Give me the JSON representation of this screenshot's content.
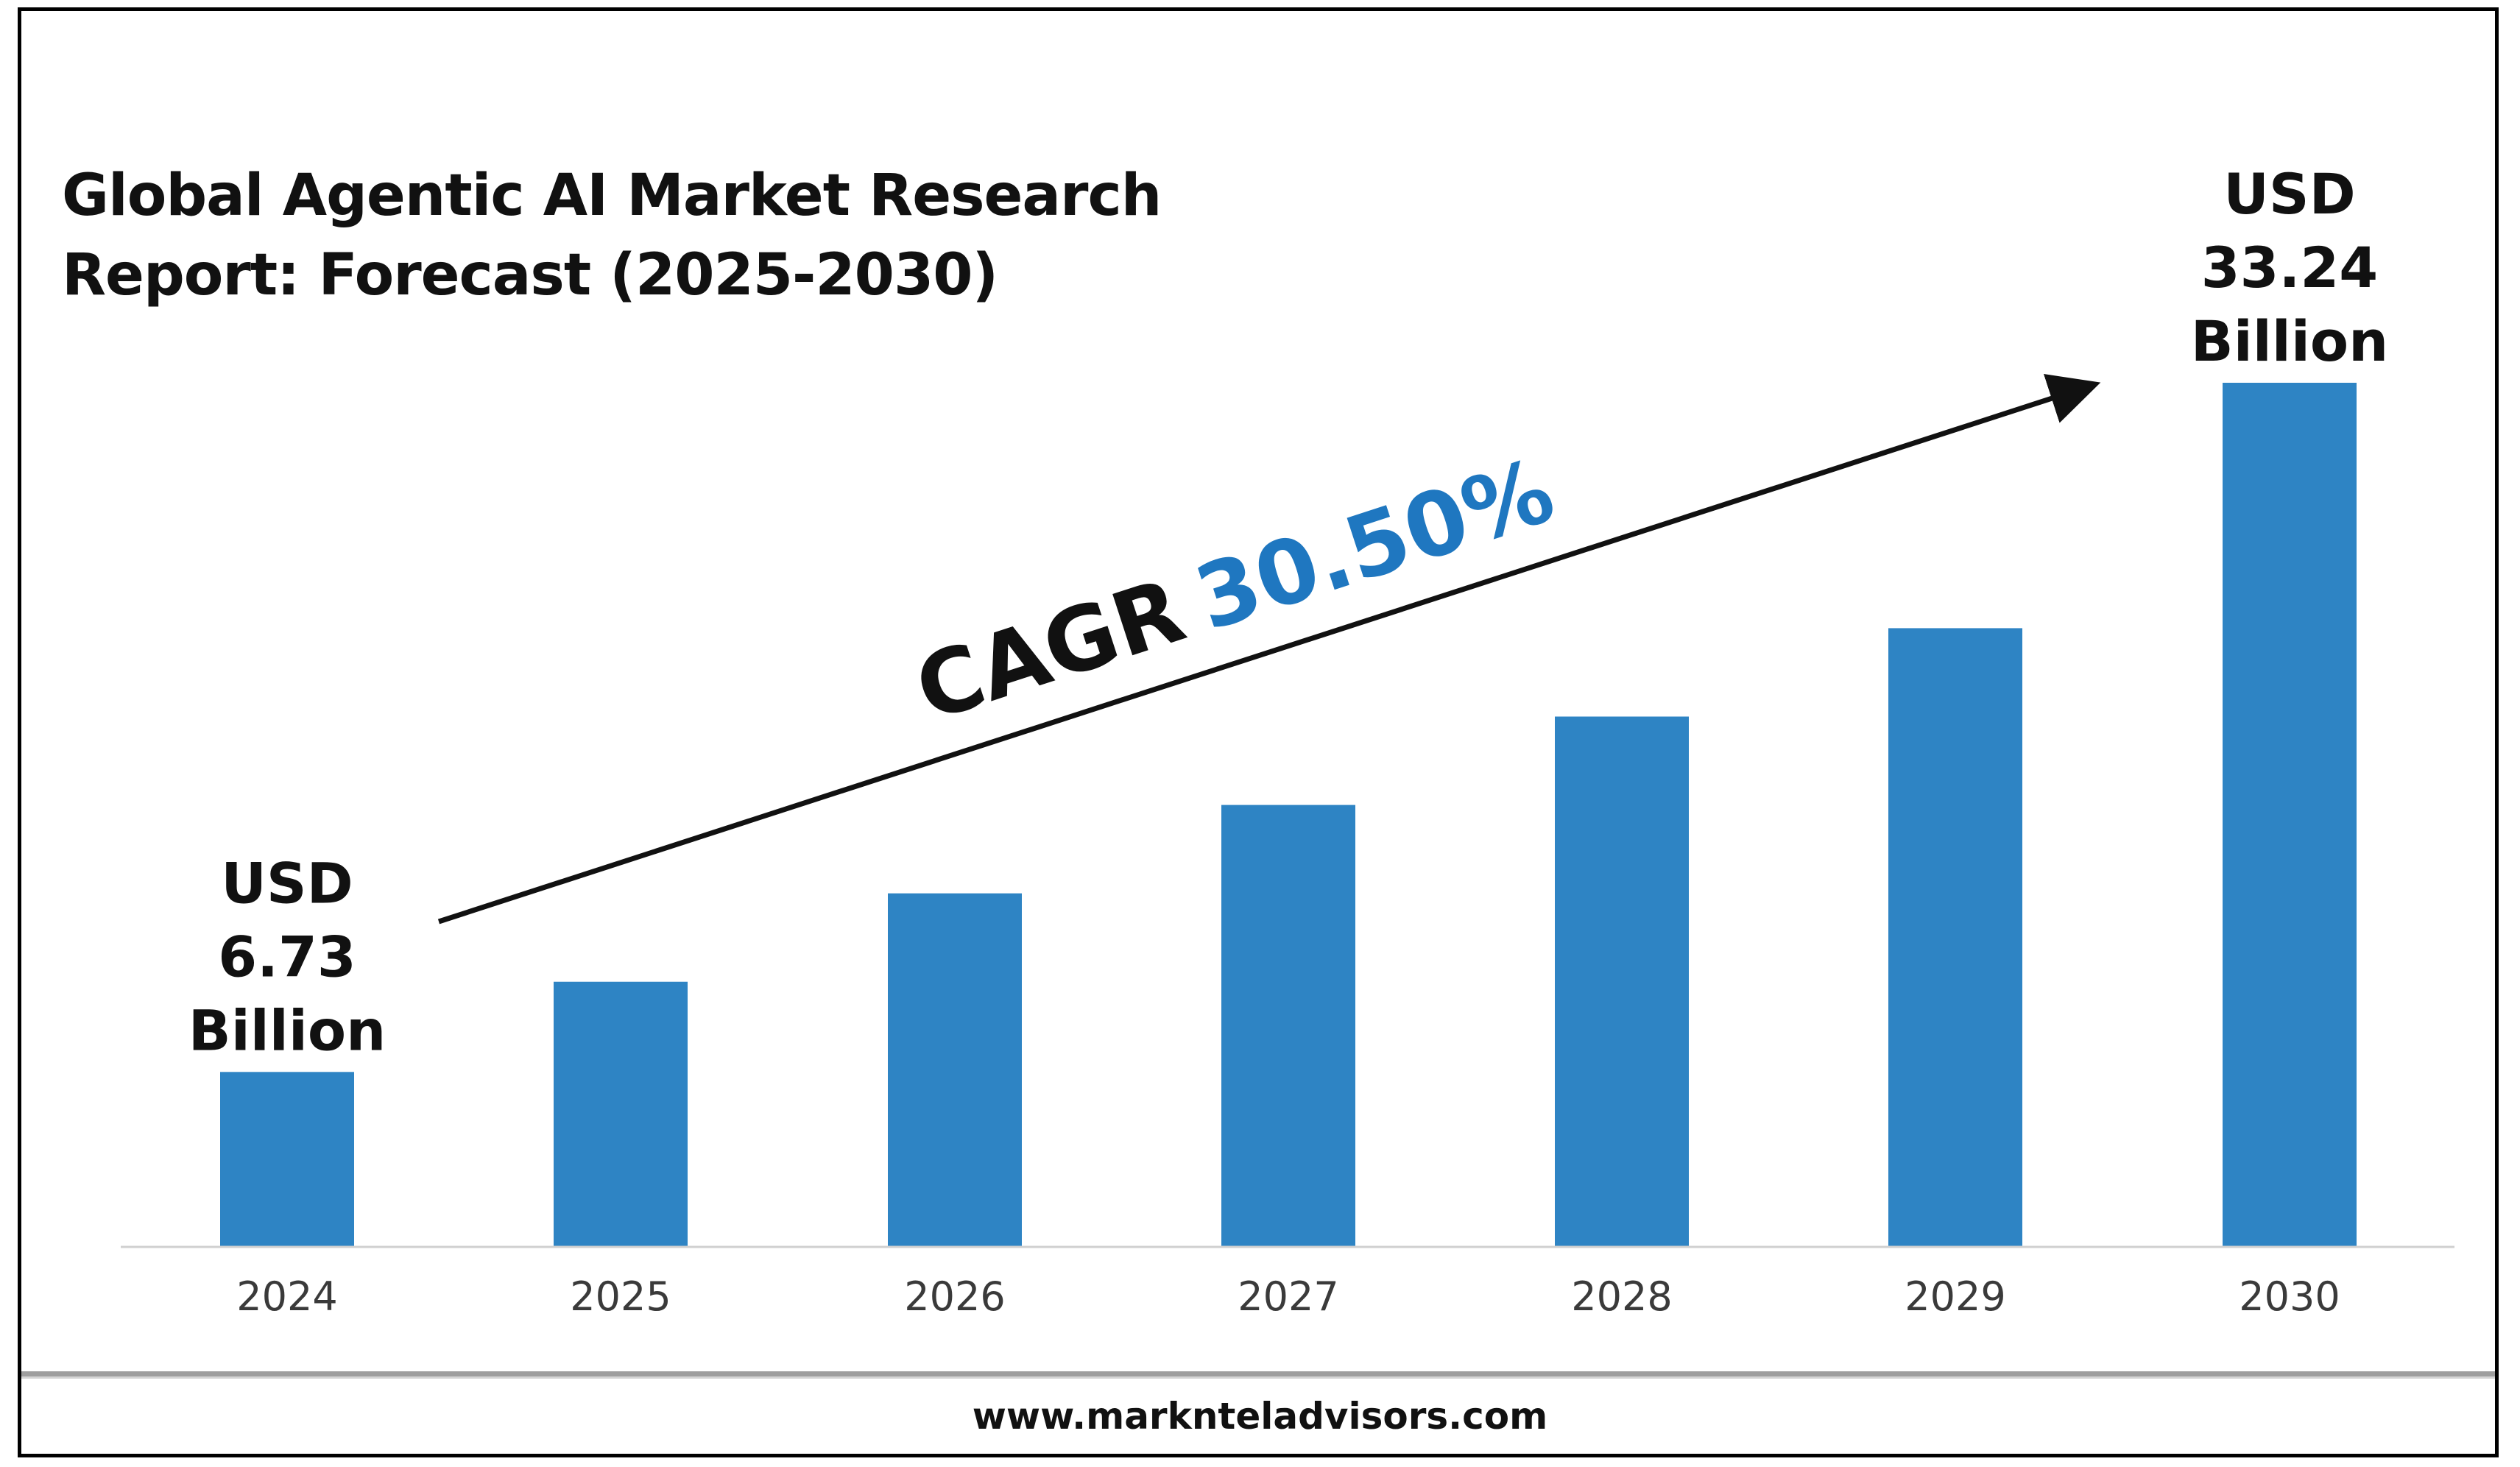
{
  "title": "Global Agentic AI Market Research\nReport: Forecast (2025-2030)",
  "footer": {
    "url": "www.marknteladvisors.com"
  },
  "cagr": {
    "prefix": "CAGR",
    "value": "30.50%",
    "color": "#1f77c0"
  },
  "colors": {
    "bar": "#2e84c4",
    "axis": "#d0d0d0",
    "text": "#111111",
    "tick": "#3a3a3a"
  },
  "chart_data": {
    "type": "bar",
    "categories": [
      "2024",
      "2025",
      "2026",
      "2027",
      "2028",
      "2029",
      "2030"
    ],
    "values": [
      6.73,
      10.2,
      13.6,
      17.0,
      20.4,
      23.8,
      33.24
    ],
    "title": "Global Agentic AI Market Research Report: Forecast (2025-2030)",
    "annotations": [
      {
        "category": "2024",
        "lines": [
          "USD",
          "6.73",
          "Billion"
        ]
      },
      {
        "category": "2030",
        "lines": [
          "USD",
          "33.24",
          "Billion"
        ]
      }
    ],
    "grid": false
  }
}
